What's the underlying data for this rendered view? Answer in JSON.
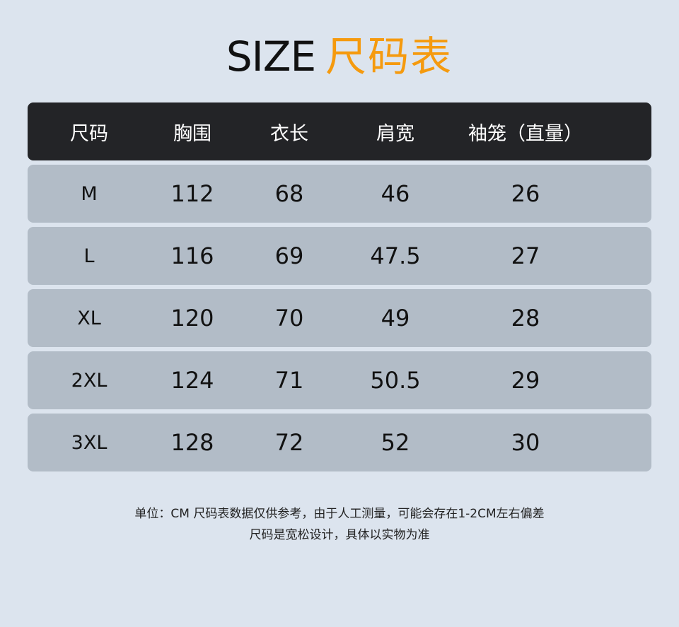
{
  "title": {
    "en": "SIZE",
    "cn": "尺码表"
  },
  "colors": {
    "accent": "#f59a0e",
    "header_bg": "#232427",
    "row_bg": "#b2bcc7",
    "page_bg": "#dce4ee"
  },
  "table": {
    "headers": [
      "尺码",
      "胸围",
      "衣长",
      "肩宽",
      "袖笼（直量）"
    ],
    "rows": [
      [
        "M",
        "112",
        "68",
        "46",
        "26"
      ],
      [
        "L",
        "116",
        "69",
        "47.5",
        "27"
      ],
      [
        "XL",
        "120",
        "70",
        "49",
        "28"
      ],
      [
        "2XL",
        "124",
        "71",
        "50.5",
        "29"
      ],
      [
        "3XL",
        "128",
        "72",
        "52",
        "30"
      ]
    ]
  },
  "notes": [
    "单位：CM 尺码表数据仅供参考，由于人工测量，可能会存在1-2CM左右偏差",
    "尺码是宽松设计，具体以实物为准"
  ]
}
